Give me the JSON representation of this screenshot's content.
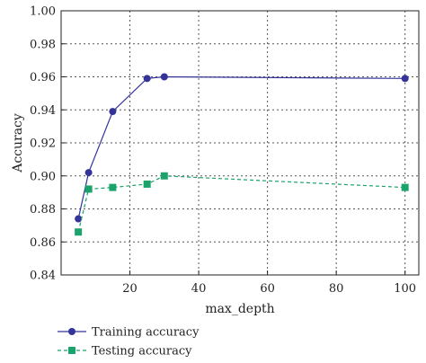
{
  "chart_data": {
    "type": "line",
    "title": "",
    "xlabel": "max_depth",
    "ylabel": "Accuracy",
    "xlim": [
      0,
      104
    ],
    "ylim": [
      0.84,
      1.0
    ],
    "xticks": [
      20,
      40,
      60,
      80,
      100
    ],
    "yticks": [
      0.84,
      0.86,
      0.88,
      0.9,
      0.92,
      0.94,
      0.96,
      0.98,
      1.0
    ],
    "xtick_labels": [
      "20",
      "40",
      "60",
      "80",
      "100"
    ],
    "ytick_labels": [
      "0.84",
      "0.86",
      "0.88",
      "0.90",
      "0.92",
      "0.94",
      "0.96",
      "0.98",
      "1.00"
    ],
    "grid": true,
    "legend_position": "bottom-left, outside plot",
    "series": [
      {
        "name": "Training accuracy",
        "color": "#33339a",
        "line_style": "solid",
        "marker": "circle",
        "x": [
          5,
          8,
          15,
          25,
          30,
          100
        ],
        "y": [
          0.874,
          0.902,
          0.939,
          0.959,
          0.96,
          0.959
        ]
      },
      {
        "name": "Testing accuracy",
        "color": "#1aa36a",
        "line_style": "dashed",
        "marker": "square",
        "x": [
          5,
          8,
          15,
          25,
          30,
          100
        ],
        "y": [
          0.866,
          0.892,
          0.893,
          0.895,
          0.9,
          0.893
        ]
      }
    ]
  }
}
